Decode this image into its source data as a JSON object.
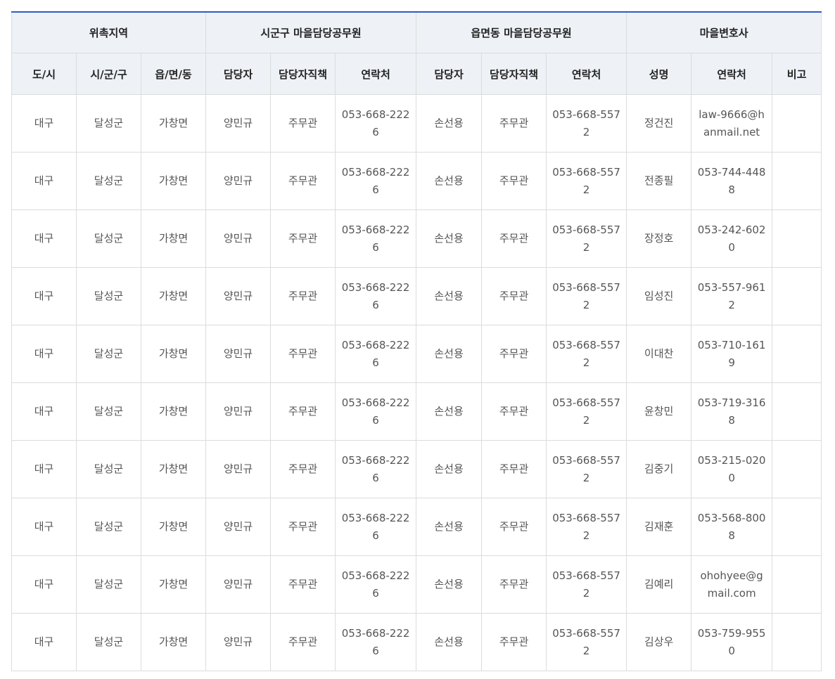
{
  "accent_color": "#2a5cc4",
  "header": {
    "groups": [
      "위촉지역",
      "시군구 마을담당공무원",
      "읍면동 마을담당공무원",
      "마을변호사"
    ],
    "columns": [
      "도/시",
      "시/군/구",
      "읍/면/동",
      "담당자",
      "담당자직책",
      "연락처",
      "담당자",
      "담당자직책",
      "연락처",
      "성명",
      "연락처",
      "비고"
    ]
  },
  "rows": [
    [
      "대구",
      "달성군",
      "가창면",
      "양민규",
      "주무관",
      "053-668-2226",
      "손선용",
      "주무관",
      "053-668-5572",
      "정건진",
      "law-9666@hanmail.net",
      ""
    ],
    [
      "대구",
      "달성군",
      "가창면",
      "양민규",
      "주무관",
      "053-668-2226",
      "손선용",
      "주무관",
      "053-668-5572",
      "전종필",
      "053-744-4488",
      ""
    ],
    [
      "대구",
      "달성군",
      "가창면",
      "양민규",
      "주무관",
      "053-668-2226",
      "손선용",
      "주무관",
      "053-668-5572",
      "장정호",
      "053-242-6020",
      ""
    ],
    [
      "대구",
      "달성군",
      "가창면",
      "양민규",
      "주무관",
      "053-668-2226",
      "손선용",
      "주무관",
      "053-668-5572",
      "임성진",
      "053-557-9612",
      ""
    ],
    [
      "대구",
      "달성군",
      "가창면",
      "양민규",
      "주무관",
      "053-668-2226",
      "손선용",
      "주무관",
      "053-668-5572",
      "이대찬",
      "053-710-1619",
      ""
    ],
    [
      "대구",
      "달성군",
      "가창면",
      "양민규",
      "주무관",
      "053-668-2226",
      "손선용",
      "주무관",
      "053-668-5572",
      "윤창민",
      "053-719-3168",
      ""
    ],
    [
      "대구",
      "달성군",
      "가창면",
      "양민규",
      "주무관",
      "053-668-2226",
      "손선용",
      "주무관",
      "053-668-5572",
      "김중기",
      "053-215-0200",
      ""
    ],
    [
      "대구",
      "달성군",
      "가창면",
      "양민규",
      "주무관",
      "053-668-2226",
      "손선용",
      "주무관",
      "053-668-5572",
      "김재훈",
      "053-568-8008",
      ""
    ],
    [
      "대구",
      "달성군",
      "가창면",
      "양민규",
      "주무관",
      "053-668-2226",
      "손선용",
      "주무관",
      "053-668-5572",
      "김예리",
      "ohohyee@gmail.com",
      ""
    ],
    [
      "대구",
      "달성군",
      "가창면",
      "양민규",
      "주무관",
      "053-668-2226",
      "손선용",
      "주무관",
      "053-668-5572",
      "김상우",
      "053-759-9550",
      ""
    ]
  ]
}
